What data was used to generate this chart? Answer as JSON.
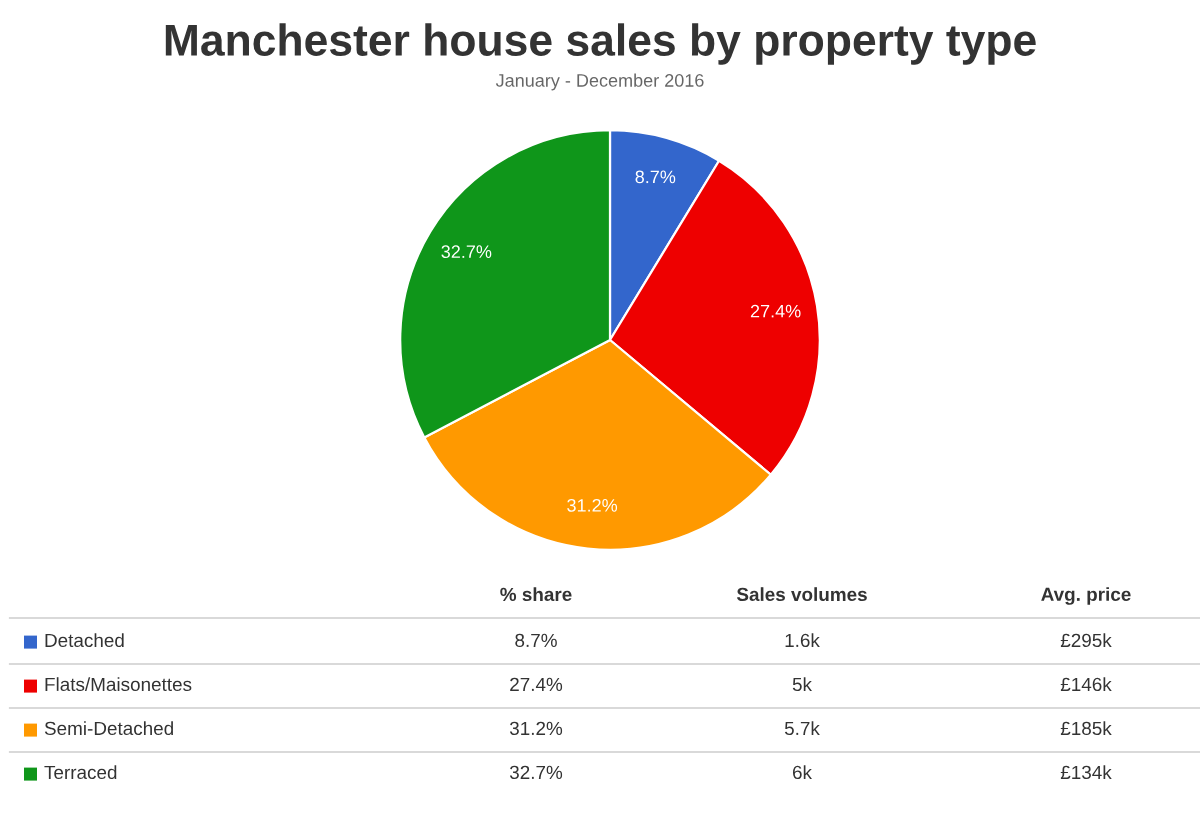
{
  "chart_data": [
    {
      "type": "pie",
      "title": "Manchester house sales by property type",
      "subtitle": "January - December 2016",
      "categories": [
        null,
        null,
        null,
        null
      ],
      "values": [
        8.7,
        27.4,
        31.2,
        32.7
      ],
      "colors": [
        "#3366cc",
        "#ee0000",
        "#ff9900",
        "#0f961a"
      ],
      "value_labels": [
        "8.7%",
        "27.4%",
        "31.2%",
        "32.7%"
      ]
    },
    {
      "type": "other",
      "categories": [
        "Detached",
        "Flats/Maisonettes",
        "Semi-Detached",
        "Terraced"
      ],
      "colors": [
        "#3366cc",
        "#ee0000",
        "#ff9900",
        "#0f961a"
      ],
      "series": [
        {
          "name": "% share",
          "values": [
            8.7,
            27.4,
            31.2,
            32.7
          ],
          "value_labels": [
            "8.7%",
            "27.4%",
            "31.2%",
            "32.7%"
          ]
        },
        {
          "name": "Sales volumes",
          "values": [
            1.6,
            5,
            5.7,
            6
          ],
          "value_labels": [
            "1.6k",
            "5k",
            "5.7k",
            "6k"
          ]
        },
        {
          "name": "Avg. price",
          "values": [
            295,
            146,
            185,
            134
          ],
          "value_labels": [
            "£295k",
            "£146k",
            "£185k",
            "£134k"
          ]
        }
      ]
    }
  ]
}
